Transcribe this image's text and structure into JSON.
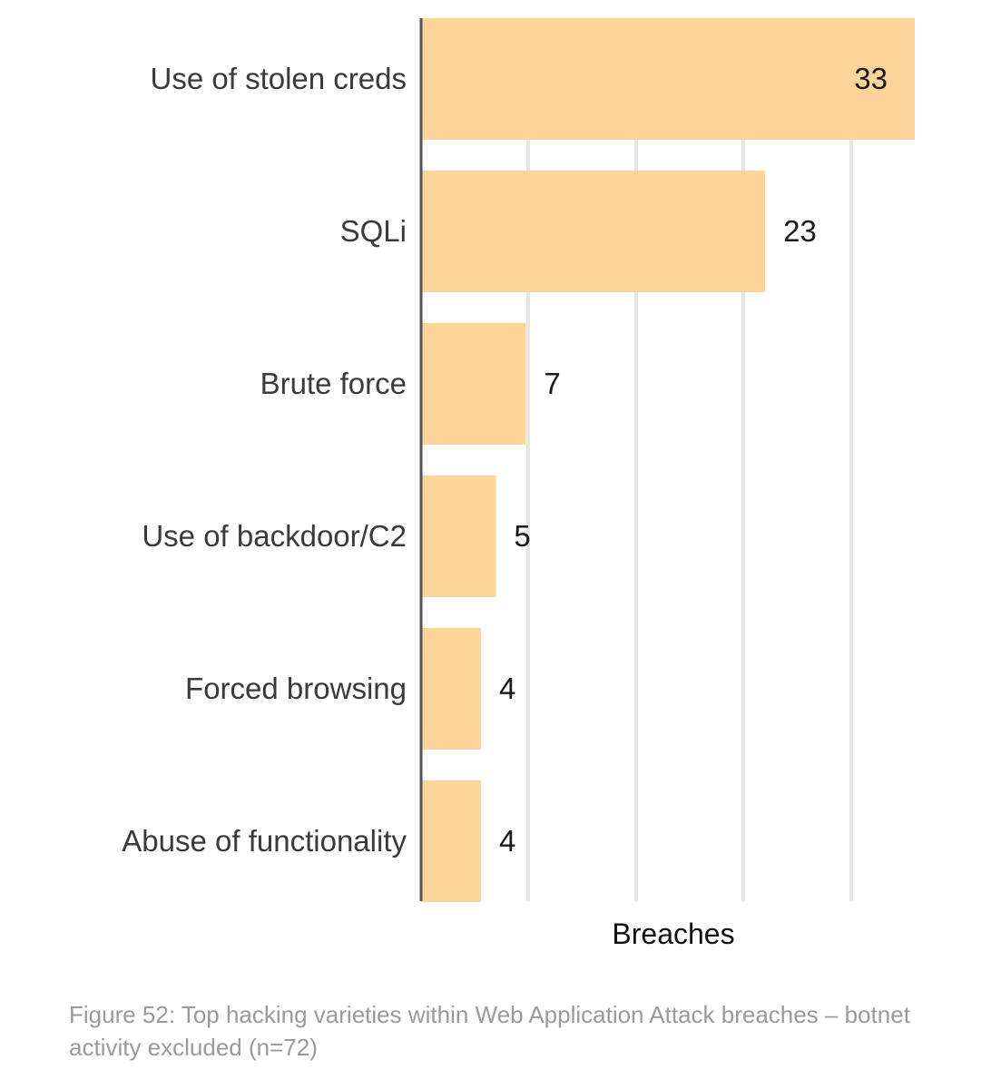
{
  "chart_data": {
    "type": "bar",
    "orientation": "horizontal",
    "categories": [
      "Use of stolen creds",
      "SQLi",
      "Brute force",
      "Use of backdoor/C2",
      "Forced browsing",
      "Abuse of functionality"
    ],
    "values": [
      33,
      23,
      7,
      5,
      4,
      4
    ],
    "data_labels": [
      "33",
      "23",
      "7",
      "5",
      "4",
      "4"
    ],
    "xlabel": "Breaches",
    "ylabel": "",
    "xlim": [
      0,
      33
    ],
    "grid": true,
    "bar_color": "#FDD49A",
    "grid_color": "#E6E6E6",
    "axis_color": "#555555"
  },
  "caption": "Figure 52: Top hacking varieties within Web Application Attack breaches – botnet activity excluded (n=72)"
}
